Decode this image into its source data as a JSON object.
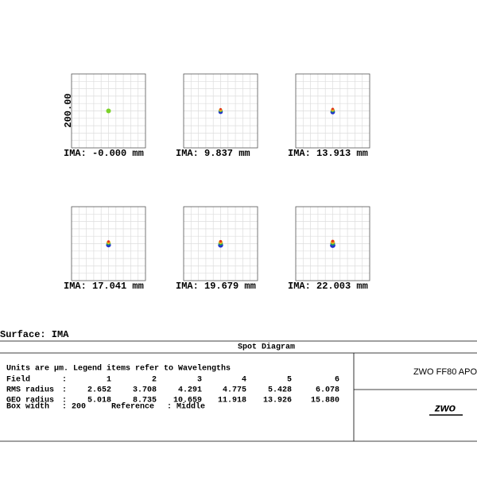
{
  "plots": [
    {
      "label": "IMA: -0.000 mm"
    },
    {
      "label": "IMA: 9.837 mm"
    },
    {
      "label": "IMA: 13.913 mm"
    },
    {
      "label": "IMA: 17.041 mm"
    },
    {
      "label": "IMA: 19.679 mm"
    },
    {
      "label": "IMA: 22.003 mm"
    }
  ],
  "scale_label": "200.00",
  "surface": "Surface: IMA",
  "footer": {
    "title": "Spot Diagram",
    "note": "Units are µm. Legend items refer to Wavelengths",
    "rows": [
      {
        "label": "Field",
        "values": [
          "1",
          "2",
          "3",
          "4",
          "5",
          "6"
        ]
      },
      {
        "label": "RMS radius",
        "values": [
          "2.652",
          "3.708",
          "4.291",
          "4.775",
          "5.428",
          "6.078"
        ]
      },
      {
        "label": "GEO radius",
        "values": [
          "5.018",
          "8.735",
          "10.659",
          "11.918",
          "13.926",
          "15.880"
        ]
      }
    ],
    "colon": ":",
    "box_width": {
      "label": "Box width",
      "value": "200"
    },
    "reference": {
      "label": "Reference",
      "value": "Middle"
    },
    "product": "ZWO FF80 APO",
    "logo": "zwo"
  }
}
